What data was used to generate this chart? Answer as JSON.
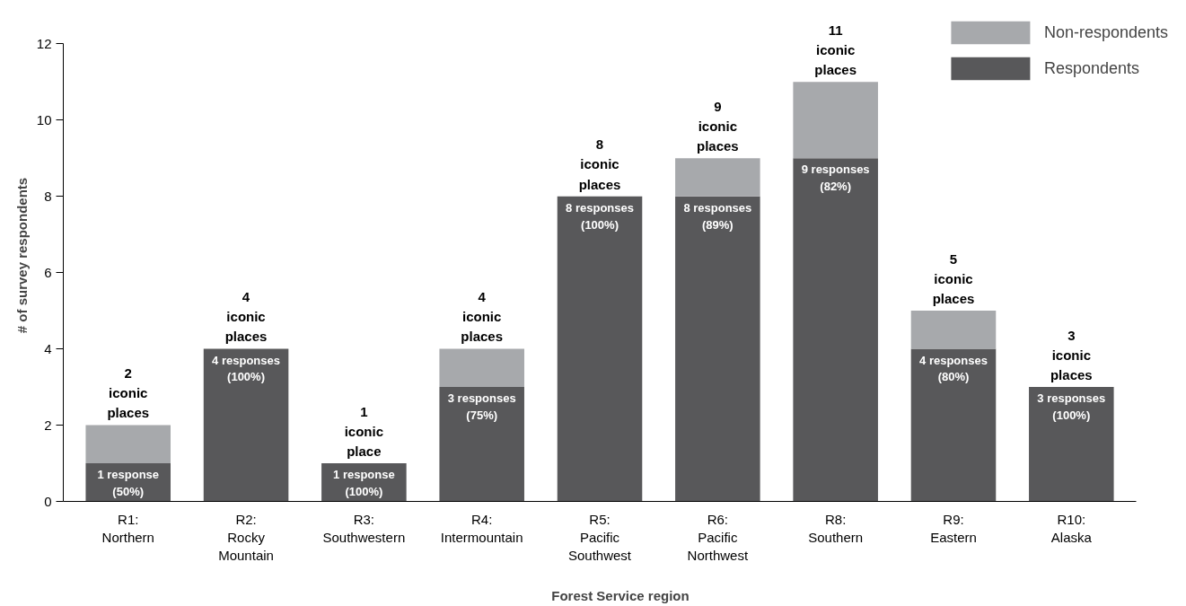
{
  "chart_data": {
    "type": "bar",
    "stacked": true,
    "xlabel": "Forest Service region",
    "ylabel": "# of survey respondents",
    "categories": [
      "R1:\nNorthern",
      "R2:\nRocky\nMountain",
      "R3:\nSouthwestern",
      "R4:\nIntermountain",
      "R5:\nPacific\nSouthwest",
      "R6:\nPacific\nNorthwest",
      "R8:\nSouthern",
      "R9:\nEastern",
      "R10:\nAlaska"
    ],
    "series": [
      {
        "name": "Respondents",
        "color": "#58585a",
        "values": [
          1,
          4,
          1,
          3,
          8,
          8,
          9,
          4,
          3
        ],
        "value_labels": [
          "1 response\n(50%)",
          "4 responses\n(100%)",
          "1 response\n(100%)",
          "3 responses\n(75%)",
          "8 responses\n(100%)",
          "8 responses\n(89%)",
          "9 responses\n(82%)",
          "4 responses\n(80%)",
          "3 responses\n(100%)"
        ]
      },
      {
        "name": "Non-respondents",
        "color": "#a7a9ac",
        "values": [
          1,
          0,
          0,
          1,
          0,
          1,
          2,
          1,
          0
        ]
      }
    ],
    "totals": [
      "2\niconic\nplaces",
      "4\niconic\nplaces",
      "1\niconic\nplace",
      "4\niconic\nplaces",
      "8\niconic\nplaces",
      "9\niconic\nplaces",
      "11\niconic\nplaces",
      "5\niconic\nplaces",
      "3\niconic\nplaces"
    ],
    "ylim": [
      0,
      12
    ],
    "yticks": [
      0,
      2,
      4,
      6,
      8,
      10,
      12
    ],
    "grid": false,
    "legend": "top right"
  }
}
